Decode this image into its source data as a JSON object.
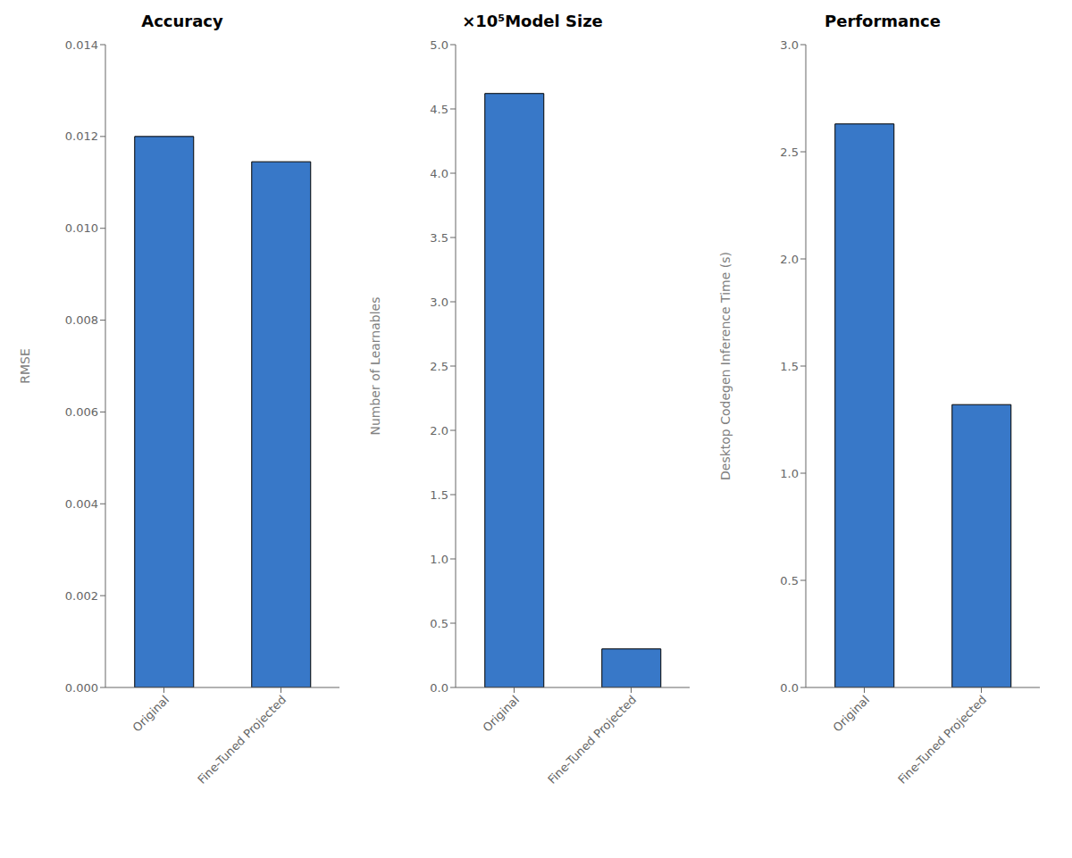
{
  "chart_data": [
    {
      "type": "bar",
      "title": "Accuracy",
      "ylabel": "RMSE",
      "categories": [
        "Original",
        "Fine-Tuned Projected"
      ],
      "values": [
        0.012,
        0.01145
      ],
      "color": "#3878C8",
      "ylim": [
        0,
        0.014
      ],
      "yticks": [
        {
          "value": 0,
          "label": "0.000"
        },
        0.002,
        0.004,
        0.006,
        0.008,
        {
          "value": 0.01,
          "label": "0.010"
        },
        0.012,
        0.014
      ],
      "grid": false
    },
    {
      "type": "bar",
      "title": "×10⁵Model Size",
      "ylabel": "Number of Learnables",
      "categories": [
        "Original",
        "Fine-Tuned Projected"
      ],
      "values": [
        4.62,
        0.3
      ],
      "color": "#3878C8",
      "ylim": [
        0,
        5
      ],
      "yticks": [
        {
          "value": 0,
          "label": "0.0"
        },
        0.5,
        {
          "value": 1,
          "label": "1.0"
        },
        1.5,
        {
          "value": 2,
          "label": "2.0"
        },
        2.5,
        {
          "value": 3,
          "label": "3.0"
        },
        3.5,
        {
          "value": 4,
          "label": "4.0"
        },
        4.5,
        {
          "value": 5,
          "label": "5.0"
        }
      ],
      "grid": false
    },
    {
      "type": "bar",
      "title": "Performance",
      "ylabel": "Desktop Codegen Inference Time (s)",
      "categories": [
        "Original",
        "Fine-Tuned Projected"
      ],
      "values": [
        2.63,
        1.32
      ],
      "color": "#3878C8",
      "ylim": [
        0,
        3
      ],
      "yticks": [
        {
          "value": 0,
          "label": "0.0"
        },
        0.5,
        {
          "value": 1,
          "label": "1.0"
        },
        1.5,
        {
          "value": 2,
          "label": "2.0"
        },
        2.5,
        {
          "value": 3,
          "label": "3.0"
        }
      ],
      "grid": false
    }
  ]
}
